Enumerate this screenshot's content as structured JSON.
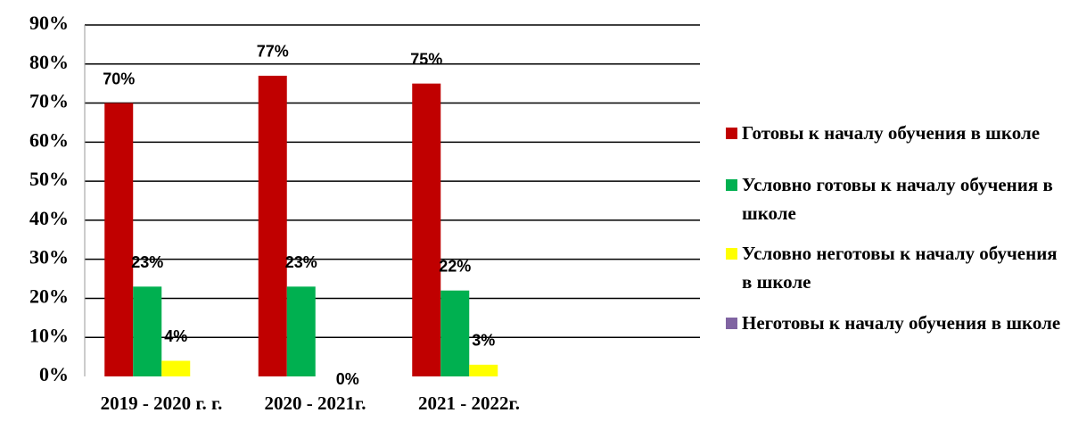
{
  "chart_data": {
    "type": "bar",
    "categories": [
      "2019 - 2020 г. г.",
      "2020 - 2021г.",
      "2021 - 2022г.",
      null
    ],
    "series": [
      {
        "name": "Готовы к началу обучения в школе",
        "color": "#c00000",
        "values": [
          70,
          77,
          75,
          null
        ],
        "value_labels": [
          "70%",
          "77%",
          "75%",
          null
        ]
      },
      {
        "name": "Условно готовы к началу обучения в школе",
        "color": "#00b050",
        "values": [
          23,
          23,
          22,
          null
        ],
        "value_labels": [
          "23%",
          "23%",
          "22%",
          null
        ]
      },
      {
        "name": "Условно неготовы к началу обучения в школе",
        "color": "#ffff00",
        "values": [
          4,
          0,
          3,
          null
        ],
        "value_labels": [
          "4%",
          "0%",
          "3%",
          null
        ]
      },
      {
        "name": "Неготовы к началу обучения в школе",
        "color": "#8064a2",
        "values": [
          null,
          null,
          null,
          null
        ],
        "value_labels": [
          null,
          null,
          null,
          null
        ]
      }
    ],
    "ylim": [
      0,
      90
    ],
    "yticks": [
      {
        "value": 0,
        "label": "0%"
      },
      {
        "value": 10,
        "label": "10%"
      },
      {
        "value": 20,
        "label": "20%"
      },
      {
        "value": 30,
        "label": "30%"
      },
      {
        "value": 40,
        "label": "40%"
      },
      {
        "value": 50,
        "label": "50%"
      },
      {
        "value": 60,
        "label": "60%"
      },
      {
        "value": 70,
        "label": "70%"
      },
      {
        "value": 80,
        "label": "80%"
      },
      {
        "value": 90,
        "label": "90%"
      }
    ],
    "grid": true,
    "legend": "right"
  }
}
